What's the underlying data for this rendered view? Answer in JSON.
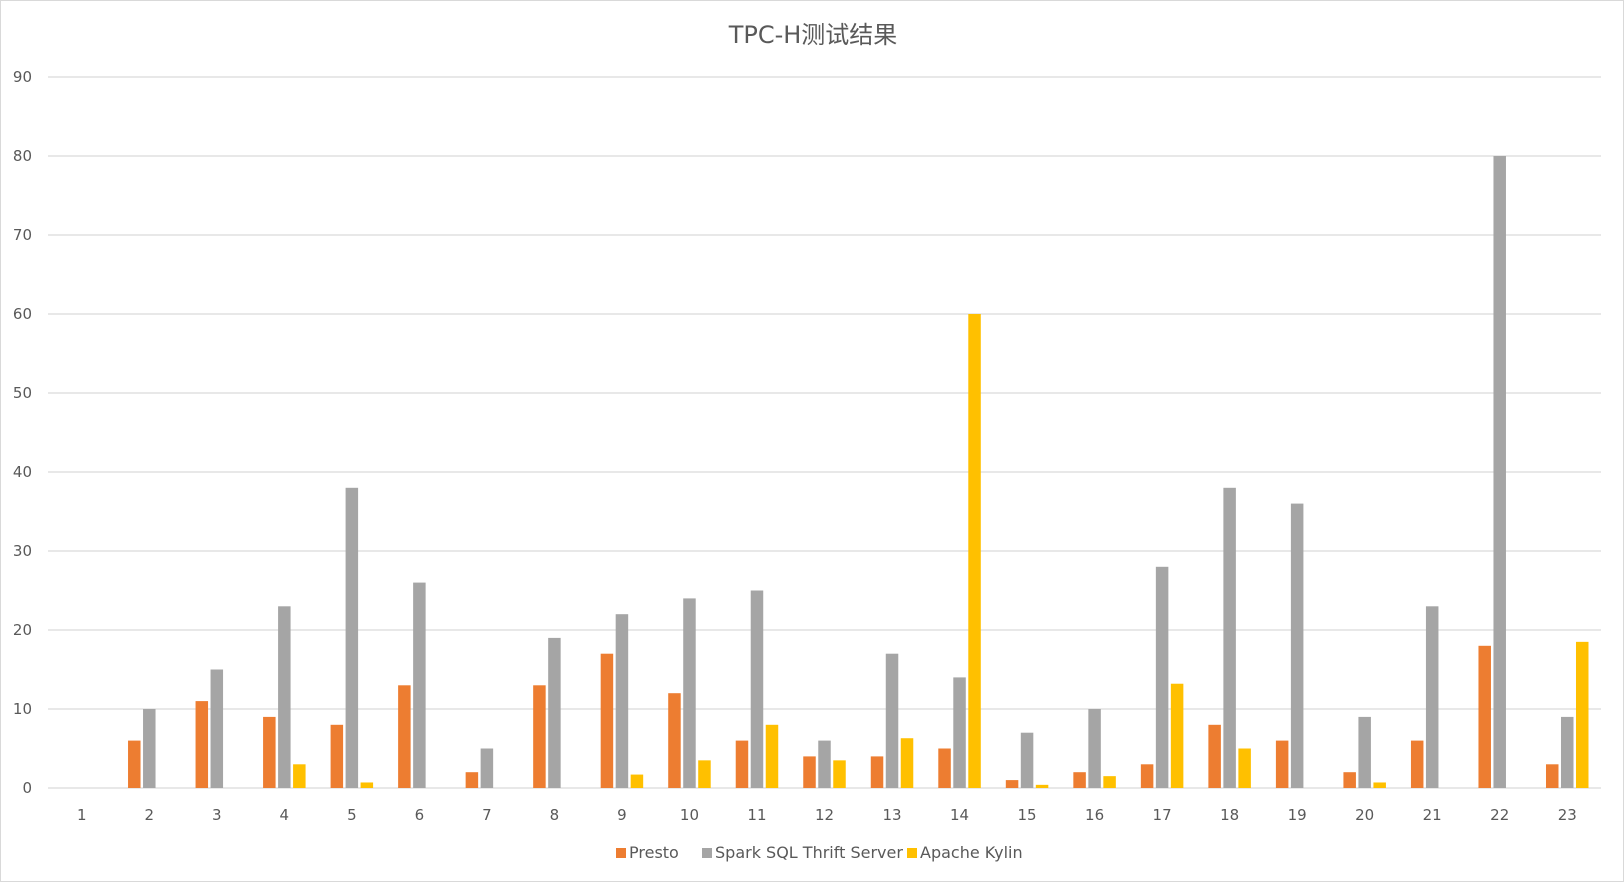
{
  "chart_data": {
    "type": "bar",
    "title": "TPC-H测试结果",
    "xlabel": "",
    "ylabel": "",
    "ylim": [
      0,
      90
    ],
    "yticks": [
      "0",
      "10",
      "20",
      "30",
      "40",
      "50",
      "60",
      "70",
      "80",
      "90"
    ],
    "grid": true,
    "legend_position": "bottom",
    "categories": [
      "1",
      "2",
      "3",
      "4",
      "5",
      "6",
      "7",
      "8",
      "9",
      "10",
      "11",
      "12",
      "13",
      "14",
      "15",
      "16",
      "17",
      "18",
      "19",
      "20",
      "21",
      "22",
      "23"
    ],
    "series": [
      {
        "name": "Presto",
        "color": "#ED7D31",
        "values": [
          0,
          6,
          11,
          9,
          8,
          13,
          2,
          13,
          17,
          12,
          6,
          4,
          4,
          5,
          1,
          2,
          3,
          8,
          6,
          2,
          6,
          18,
          3
        ]
      },
      {
        "name": "Spark SQL Thrift Server",
        "color": "#A5A5A5",
        "values": [
          0,
          10,
          15,
          23,
          38,
          26,
          5,
          19,
          22,
          24,
          25,
          6,
          17,
          14,
          7,
          10,
          28,
          38,
          36,
          9,
          23,
          80,
          9
        ]
      },
      {
        "name": "Apache Kylin",
        "color": "#FFC000",
        "values": [
          0,
          0,
          0,
          3,
          0.7,
          0,
          0,
          0,
          1.7,
          3.5,
          8,
          3.5,
          6.3,
          60,
          0.4,
          1.5,
          13.2,
          5,
          0,
          0.7,
          0,
          0,
          18.5
        ]
      }
    ]
  }
}
